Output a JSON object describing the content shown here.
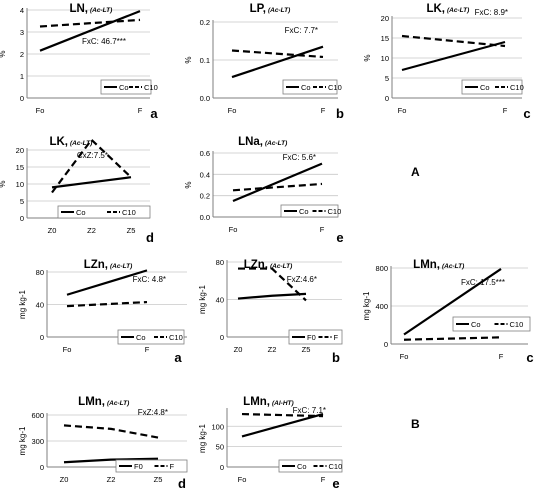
{
  "figure_labels": [
    "A",
    "B"
  ],
  "chart_data": [
    {
      "type": "line",
      "title": "LN,",
      "title_sub": "(Ac-LT)",
      "ylabel": "%",
      "categories": [
        "Fo",
        "F"
      ],
      "yticks": [
        "0",
        "1",
        "2",
        "3",
        "4"
      ],
      "ylim": [
        0,
        4
      ],
      "annotation": "FxC: 46.7***",
      "letter": "a",
      "series": [
        {
          "name": "Co",
          "values": [
            2.15,
            3.95
          ]
        },
        {
          "name": "C10",
          "values": [
            3.25,
            3.55
          ]
        }
      ]
    },
    {
      "type": "line",
      "title": "LP,",
      "title_sub": "(Ac-LT)",
      "ylabel": "%",
      "categories": [
        "Fo",
        "F"
      ],
      "yticks": [
        "0.0",
        "0.1",
        "0.2"
      ],
      "ylim": [
        0,
        0.2
      ],
      "annotation": "FxC: 7.7*",
      "letter": "b",
      "series": [
        {
          "name": "Co",
          "values": [
            0.055,
            0.135
          ]
        },
        {
          "name": "C10",
          "values": [
            0.125,
            0.108
          ]
        }
      ]
    },
    {
      "type": "line",
      "title": "LK,",
      "title_sub": "(Ac-LT)",
      "ylabel": "%",
      "categories": [
        "Fo",
        "F"
      ],
      "yticks": [
        "0",
        "5",
        "10",
        "15",
        "20"
      ],
      "ylim": [
        0,
        20
      ],
      "annotation": "FxC: 8.9*",
      "letter": "c",
      "series": [
        {
          "name": "Co",
          "values": [
            7,
            14
          ]
        },
        {
          "name": "C10",
          "values": [
            15.5,
            13
          ]
        }
      ]
    },
    {
      "type": "line",
      "title": "LK,",
      "title_sub": "(Ac-LT)",
      "ylabel": "%",
      "categories": [
        "Z0",
        "Z2",
        "Z5"
      ],
      "yticks": [
        "0",
        "5",
        "10",
        "15",
        "20"
      ],
      "ylim": [
        0,
        20
      ],
      "annotation": "CxZ:7.5*",
      "letter": "d",
      "series": [
        {
          "name": "Co",
          "values": [
            9,
            10.5,
            12
          ]
        },
        {
          "name": "C10",
          "values": [
            7.5,
            23,
            12
          ]
        }
      ]
    },
    {
      "type": "line",
      "title": "LNa,",
      "title_sub": "(Ac-LT)",
      "ylabel": "%",
      "categories": [
        "Fo",
        "F"
      ],
      "yticks": [
        "0.0",
        "0.2",
        "0.4",
        "0.6"
      ],
      "ylim": [
        0,
        0.6
      ],
      "annotation": "FxC: 5.6*",
      "letter": "e",
      "series": [
        {
          "name": "Co",
          "values": [
            0.15,
            0.5
          ]
        },
        {
          "name": "C10",
          "values": [
            0.25,
            0.31
          ]
        }
      ]
    },
    {
      "type": "line",
      "title": "LZn,",
      "title_sub": "(Ac-LT)",
      "ylabel": "mg kg-1",
      "categories": [
        "Fo",
        "F"
      ],
      "yticks": [
        "0",
        "40",
        "80"
      ],
      "ylim": [
        0,
        80
      ],
      "annotation": "FxC: 4.8*",
      "letter": "a",
      "series": [
        {
          "name": "Co",
          "values": [
            52,
            82
          ]
        },
        {
          "name": "C10",
          "values": [
            38,
            43
          ]
        }
      ]
    },
    {
      "type": "line",
      "title": "LZn,",
      "title_sub": "(Ac-LT)",
      "ylabel": "mg kg-1",
      "categories": [
        "Z0",
        "Z2",
        "Z5"
      ],
      "yticks": [
        "0",
        "40",
        "80"
      ],
      "ylim": [
        0,
        80
      ],
      "annotation": "FxZ:4.6*",
      "letter": "b",
      "series": [
        {
          "name": "F0",
          "values": [
            41,
            44,
            46
          ]
        },
        {
          "name": "F",
          "values": [
            73,
            73,
            39
          ]
        }
      ]
    },
    {
      "type": "line",
      "title": "LMn,",
      "title_sub": "(Ac-LT)",
      "ylabel": "mg kg-1",
      "categories": [
        "Fo",
        "F"
      ],
      "yticks": [
        "0",
        "400",
        "800"
      ],
      "ylim": [
        0,
        800
      ],
      "annotation": "FxC: 17.5***",
      "letter": "c",
      "series": [
        {
          "name": "Co",
          "values": [
            100,
            790
          ]
        },
        {
          "name": "C10",
          "values": [
            45,
            70
          ]
        }
      ]
    },
    {
      "type": "line",
      "title": "LMn,",
      "title_sub": "(Ac-LT)",
      "ylabel": "mg kg-1",
      "categories": [
        "Z0",
        "Z2",
        "Z5"
      ],
      "yticks": [
        "0",
        "300",
        "600"
      ],
      "ylim": [
        0,
        600
      ],
      "annotation": "FxZ:4.8*",
      "letter": "d",
      "series": [
        {
          "name": "F0",
          "values": [
            55,
            85,
            95
          ]
        },
        {
          "name": "F",
          "values": [
            480,
            440,
            340
          ]
        }
      ]
    },
    {
      "type": "line",
      "title": "LMn,",
      "title_sub": "(Al-HT)",
      "ylabel": "mg kg-1",
      "categories": [
        "Fo",
        "F"
      ],
      "yticks": [
        "0",
        "50",
        "100"
      ],
      "ylim": [
        0,
        140
      ],
      "annotation": "FxC: 7.1*",
      "letter": "e",
      "series": [
        {
          "name": "Co",
          "values": [
            75,
            130
          ]
        },
        {
          "name": "C10",
          "values": [
            130,
            125
          ]
        }
      ]
    }
  ]
}
